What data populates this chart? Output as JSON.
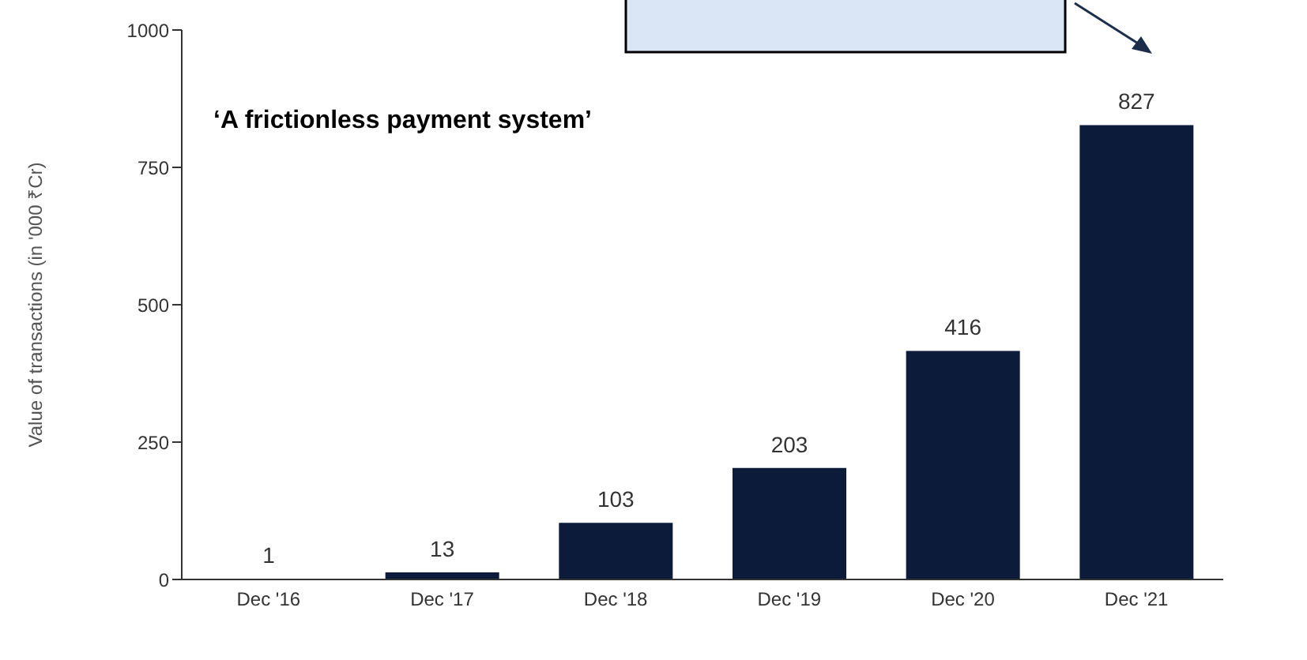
{
  "chart_data": {
    "type": "bar",
    "ylabel": "Value of transactions (in '000 ₹Cr)",
    "annotations": [
      "‘A frictionless payment system’"
    ],
    "categories": [
      "Dec '16",
      "Dec '17",
      "Dec '18",
      "Dec '19",
      "Dec '20",
      "Dec '21"
    ],
    "values": [
      1,
      13,
      103,
      203,
      416,
      827
    ],
    "color": "#0c1b3a",
    "data_labels": true,
    "ylim": [
      0,
      1000
    ],
    "yticks": [
      0,
      250,
      500,
      750,
      1000
    ]
  }
}
